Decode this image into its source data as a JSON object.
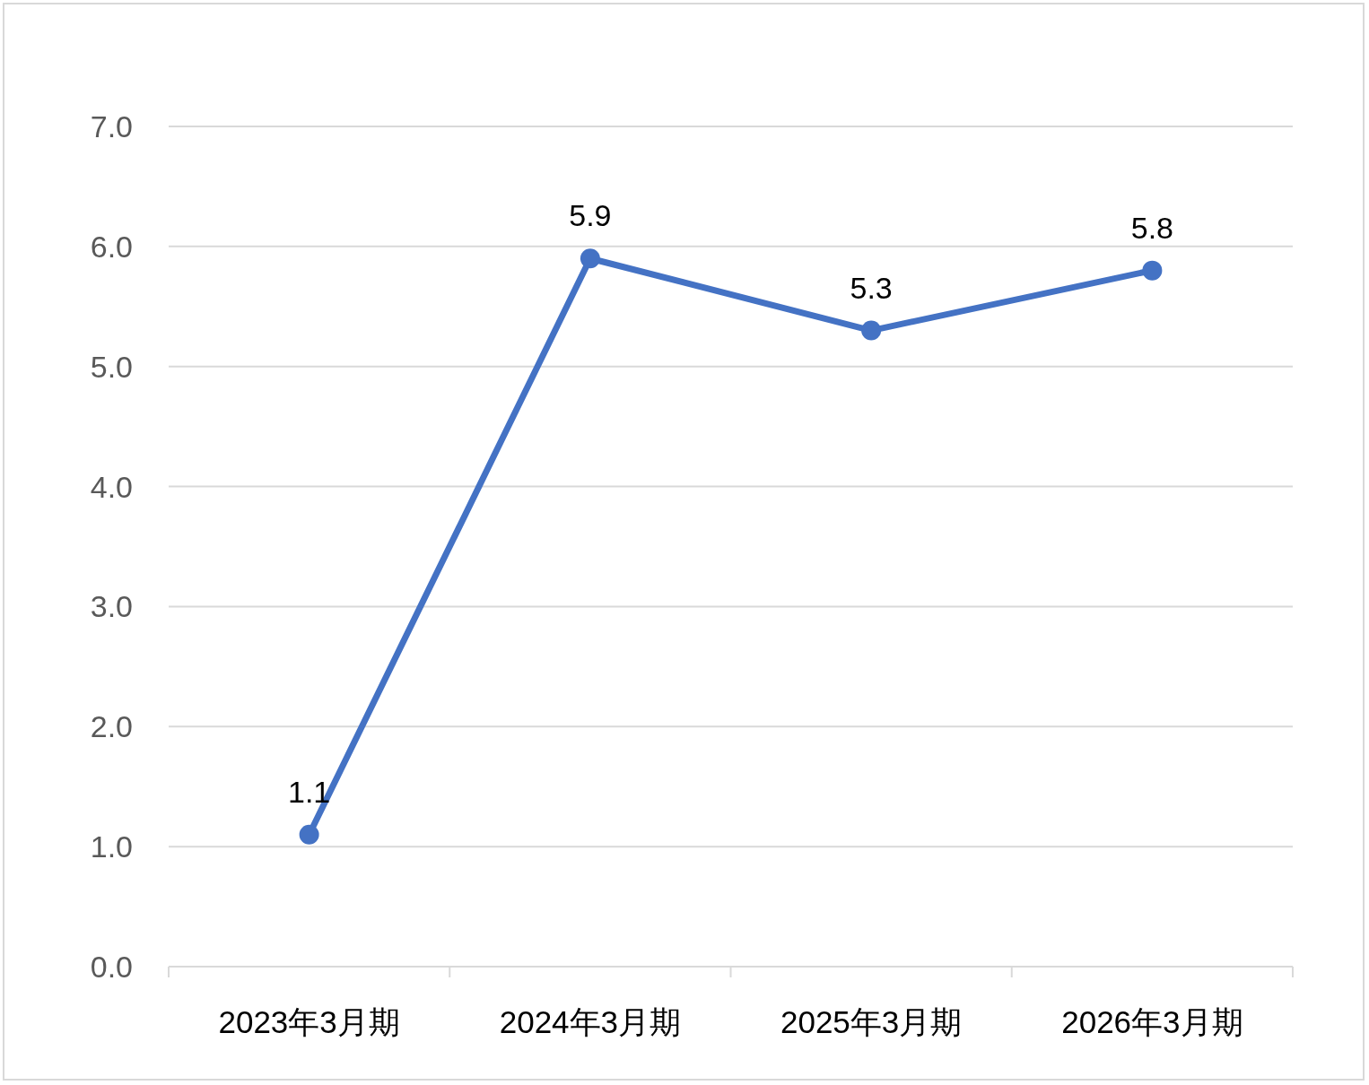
{
  "chart_data": {
    "type": "line",
    "categories": [
      "2023年3月期",
      "2024年3月期",
      "2025年3月期",
      "2026年3月期"
    ],
    "series": [
      {
        "color": "#4472c4",
        "values": [
          1.1,
          5.9,
          5.3,
          5.8
        ]
      }
    ],
    "ylim": [
      0,
      7
    ],
    "yticks": [
      {
        "value": 0,
        "label": "0.0"
      },
      {
        "value": 1,
        "label": "1.0"
      },
      {
        "value": 2,
        "label": "2.0"
      },
      {
        "value": 3,
        "label": "3.0"
      },
      {
        "value": 4,
        "label": "4.0"
      },
      {
        "value": 5,
        "label": "5.0"
      },
      {
        "value": 6,
        "label": "6.0"
      },
      {
        "value": 7,
        "label": "7.0"
      }
    ],
    "grid": "y",
    "marker": "circle",
    "line_style": "solid",
    "data_labels": true
  }
}
